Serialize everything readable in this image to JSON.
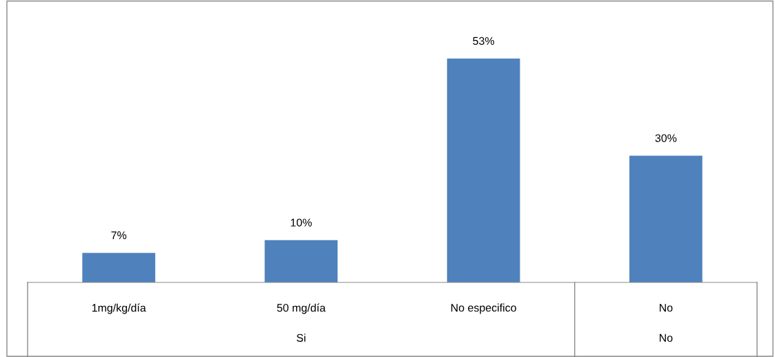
{
  "chart_data": {
    "type": "bar",
    "categories": [
      "1mg/kg/día",
      "50 mg/día",
      "No especifico",
      "No"
    ],
    "values": [
      7,
      10,
      53,
      30
    ],
    "value_labels": [
      "7%",
      "10%",
      "53%",
      "30%"
    ],
    "color": "#4f81bd",
    "annotations": [
      "Si",
      "No"
    ]
  }
}
